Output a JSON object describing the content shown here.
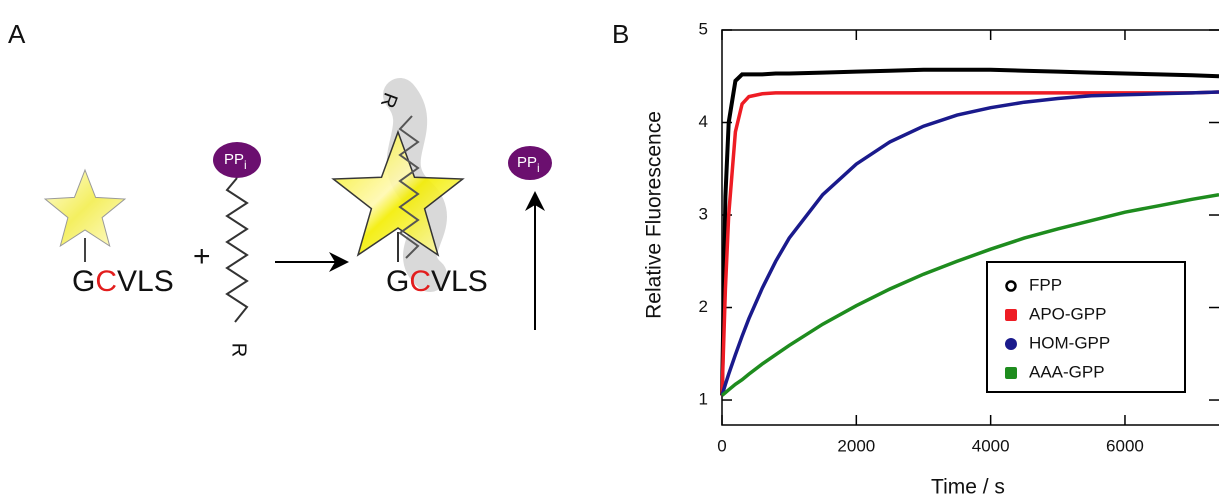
{
  "panel_a": {
    "label": "A",
    "reactant_peptide": [
      "G",
      "C",
      "VLS"
    ],
    "plus": "+",
    "prenyl_pp": "PP",
    "prenyl_pp_sub": "i",
    "prenyl_r": "R",
    "product_peptide": [
      "G",
      "C",
      "VLS"
    ],
    "product_r": "R",
    "released_pp": "PP",
    "released_pp_sub": "i"
  },
  "chart_data": {
    "type": "line",
    "panel_label": "B",
    "x_label": "Time / s",
    "y_label": "Relative Fluorescence",
    "x": [
      0,
      50,
      100,
      200,
      300,
      400,
      600,
      800,
      1000,
      1500,
      2000,
      2500,
      3000,
      3500,
      4000,
      4500,
      5000,
      5500,
      6000,
      6500,
      7000,
      7400
    ],
    "series": [
      {
        "name": "FPP",
        "color": "#000000",
        "marker": "circle-open",
        "values": [
          1.05,
          3.2,
          4.0,
          4.45,
          4.52,
          4.52,
          4.52,
          4.53,
          4.53,
          4.54,
          4.55,
          4.56,
          4.57,
          4.57,
          4.57,
          4.56,
          4.55,
          4.54,
          4.53,
          4.52,
          4.51,
          4.5
        ]
      },
      {
        "name": "APO-GPP",
        "color": "#ee1c24",
        "marker": "square",
        "values": [
          1.05,
          2.2,
          3.0,
          3.9,
          4.2,
          4.28,
          4.31,
          4.32,
          4.32,
          4.32,
          4.32,
          4.32,
          4.32,
          4.32,
          4.32,
          4.32,
          4.32,
          4.32,
          4.32,
          4.32,
          4.32,
          4.33
        ]
      },
      {
        "name": "HOM-GPP",
        "color": "#1a1a8c",
        "marker": "circle",
        "values": [
          1.05,
          1.17,
          1.28,
          1.49,
          1.69,
          1.88,
          2.21,
          2.5,
          2.75,
          3.22,
          3.55,
          3.79,
          3.96,
          4.08,
          4.16,
          4.22,
          4.26,
          4.29,
          4.3,
          4.31,
          4.32,
          4.33
        ]
      },
      {
        "name": "AAA-GPP",
        "color": "#1e8c1e",
        "marker": "square",
        "values": [
          1.05,
          1.08,
          1.11,
          1.17,
          1.22,
          1.28,
          1.39,
          1.49,
          1.59,
          1.82,
          2.02,
          2.2,
          2.36,
          2.5,
          2.63,
          2.75,
          2.85,
          2.94,
          3.03,
          3.1,
          3.17,
          3.22
        ]
      }
    ],
    "xlim": [
      0,
      7400
    ],
    "ylim": [
      0.73,
      5
    ],
    "xticks": [
      0,
      2000,
      4000,
      6000
    ],
    "yticks": [
      1,
      2,
      3,
      4,
      5
    ],
    "legend": "lower right"
  }
}
